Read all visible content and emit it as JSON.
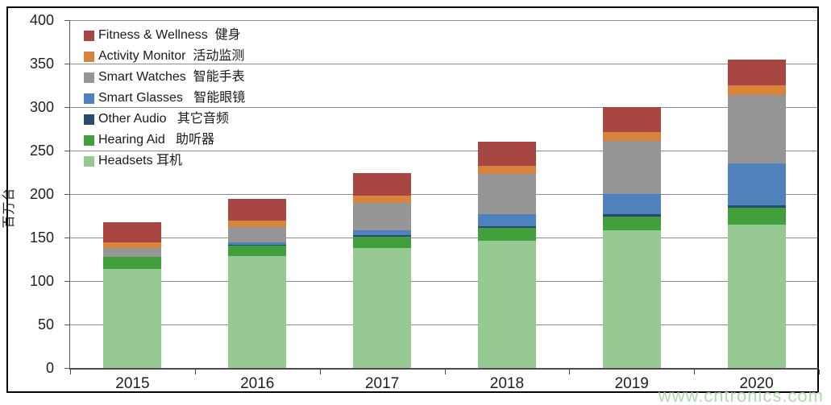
{
  "watermark": {
    "text": "www.cntronics.com",
    "color": "#a9d6a4"
  },
  "y_axis": {
    "title": "百万台",
    "ticks": [
      400,
      350,
      300,
      250,
      200,
      150,
      100,
      50,
      0
    ]
  },
  "x_axis": {
    "categories": [
      "2015",
      "2016",
      "2017",
      "2018",
      "2019",
      "2020"
    ]
  },
  "chart_data": {
    "type": "bar",
    "stacked": true,
    "title": "",
    "xlabel": "",
    "ylabel": "百万台",
    "ylim": [
      0,
      400
    ],
    "ytick_interval": 50,
    "gridlines": true,
    "legend_position": "top-left",
    "legend_note": "legend lists series top-of-stack first",
    "categories": [
      "2015",
      "2016",
      "2017",
      "2018",
      "2019",
      "2020"
    ],
    "series": [
      {
        "name": "Headsets 耳机",
        "color": "#96ca92",
        "values": [
          114,
          129,
          138,
          146,
          158,
          165
        ]
      },
      {
        "name": "Hearing Aid   助听器",
        "color": "#42a03c",
        "values": [
          14,
          12,
          13,
          15,
          16,
          19
        ]
      },
      {
        "name": "Other Audio   其它音频",
        "color": "#2a4a70",
        "values": [
          0,
          1,
          2,
          2,
          3,
          3
        ]
      },
      {
        "name": "Smart Glasses   智能眼镜",
        "color": "#4f81bd",
        "values": [
          0,
          2,
          5,
          14,
          23,
          48
        ]
      },
      {
        "name": "Smart Watches  智能手表",
        "color": "#969696",
        "values": [
          10,
          18,
          32,
          46,
          61,
          79
        ]
      },
      {
        "name": "Activity Monitor  活动监测",
        "color": "#d8843c",
        "values": [
          6,
          7,
          8,
          9,
          10,
          11
        ]
      },
      {
        "name": "Fitness & Wellness  健身",
        "color": "#a84642",
        "values": [
          24,
          25,
          26,
          28,
          29,
          30
        ]
      }
    ],
    "totals": [
      168,
      194,
      224,
      260,
      300,
      355
    ]
  }
}
